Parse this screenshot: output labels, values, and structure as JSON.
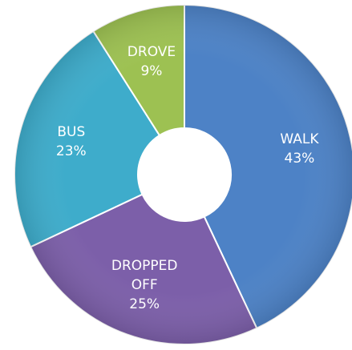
{
  "chart_data": {
    "type": "donut",
    "categories": [
      "WALK",
      "DROPPED OFF",
      "BUS",
      "DROVE"
    ],
    "values": [
      43,
      25,
      23,
      9
    ],
    "value_labels": [
      "43%",
      "25%",
      "23%",
      "9%"
    ],
    "colors": [
      "#4d82c6",
      "#7c5fa9",
      "#3eaccb",
      "#9dc152"
    ]
  }
}
